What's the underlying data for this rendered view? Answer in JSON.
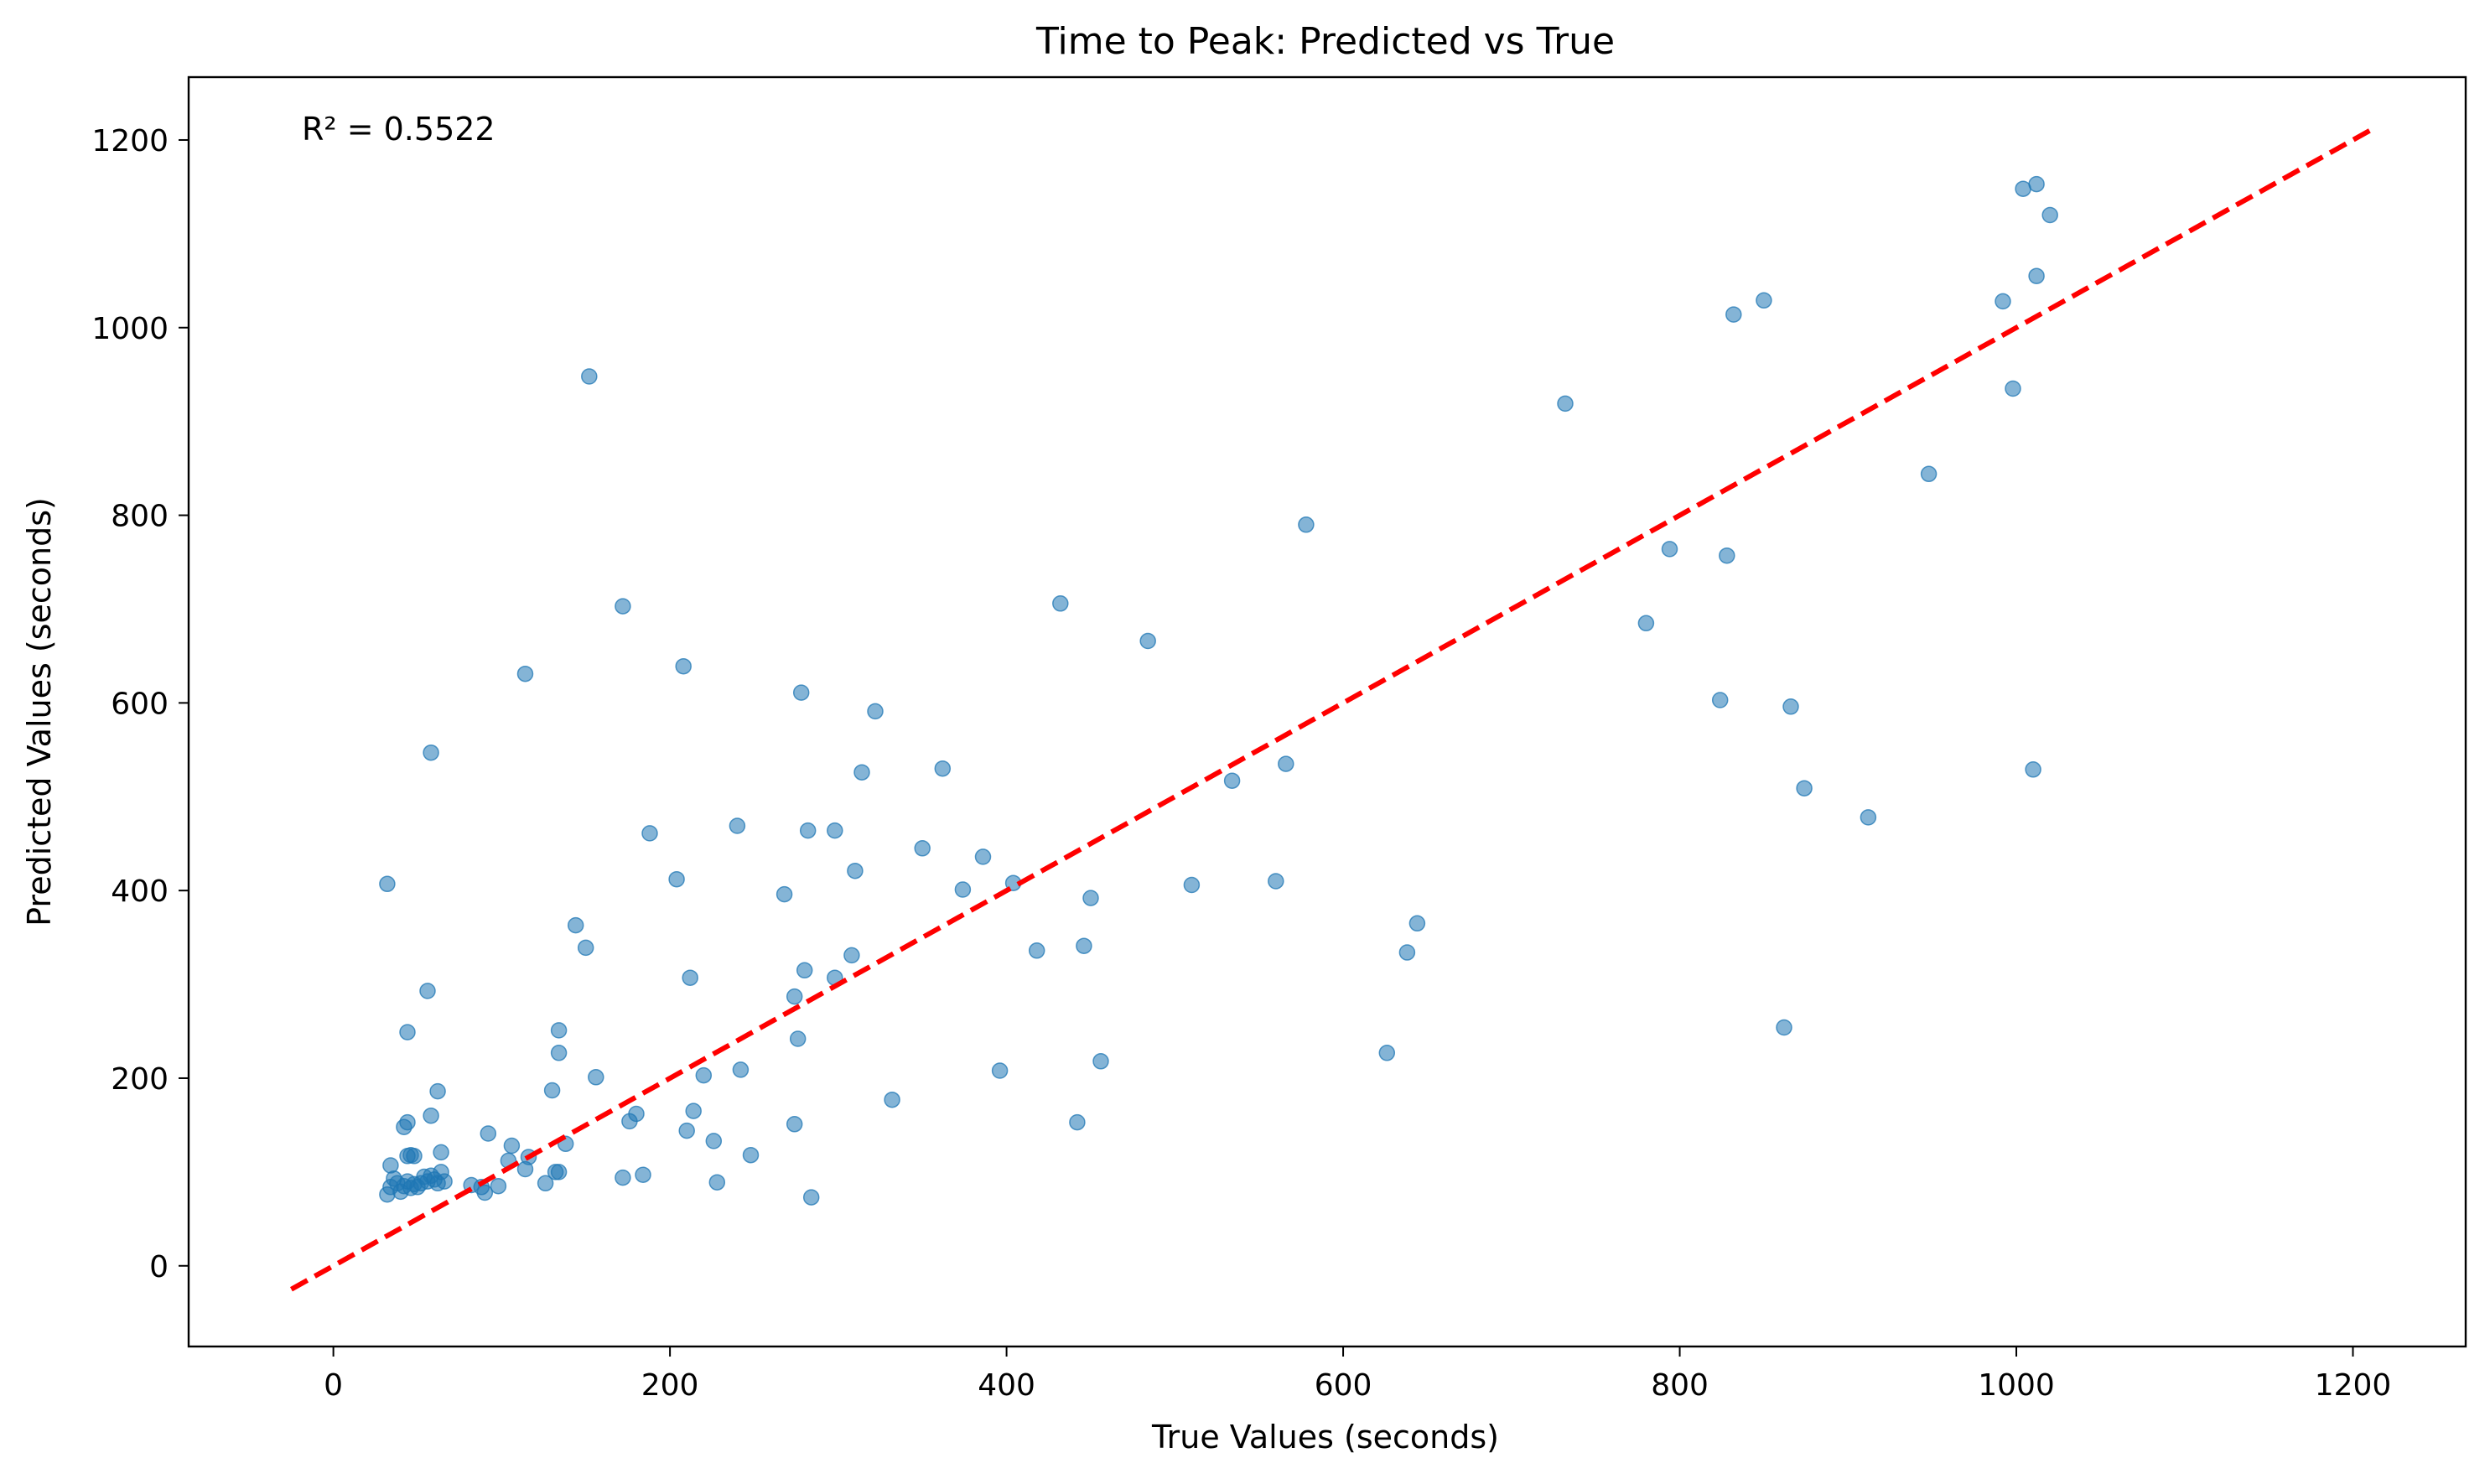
{
  "chart_data": {
    "type": "scatter",
    "title": "Time to Peak: Predicted vs True",
    "xlabel": "True Values (seconds)",
    "ylabel": "Predicted Values (seconds)",
    "xlim": [
      -86,
      1267
    ],
    "ylim": [
      -86,
      1267
    ],
    "xticks": [
      0,
      200,
      400,
      600,
      800,
      1000,
      1200
    ],
    "yticks": [
      0,
      200,
      400,
      600,
      800,
      1000,
      1200
    ],
    "grid": false,
    "legend": "none",
    "annotation": "R² = 0.5522",
    "point_color": "#1f77b4",
    "line_color": "#ff0000",
    "reference_line": {
      "x": [
        -25,
        1210
      ],
      "y": [
        -25,
        1210
      ],
      "style": "dashed"
    },
    "series": [
      {
        "points": [
          [
            32,
            76
          ],
          [
            34,
            84
          ],
          [
            36,
            93
          ],
          [
            38,
            88
          ],
          [
            40,
            79
          ],
          [
            42,
            85
          ],
          [
            44,
            90
          ],
          [
            46,
            83
          ],
          [
            48,
            87
          ],
          [
            50,
            84
          ],
          [
            52,
            88
          ],
          [
            54,
            95
          ],
          [
            56,
            90
          ],
          [
            58,
            96
          ],
          [
            60,
            92
          ],
          [
            62,
            88
          ],
          [
            64,
            100
          ],
          [
            66,
            90
          ],
          [
            34,
            107
          ],
          [
            44,
            117
          ],
          [
            46,
            118
          ],
          [
            48,
            117
          ],
          [
            58,
            160
          ],
          [
            62,
            186
          ],
          [
            56,
            293
          ],
          [
            44,
            249
          ],
          [
            42,
            148
          ],
          [
            44,
            153
          ],
          [
            58,
            547
          ],
          [
            32,
            407
          ],
          [
            64,
            121
          ],
          [
            82,
            86
          ],
          [
            88,
            84
          ],
          [
            90,
            78
          ],
          [
            92,
            141
          ],
          [
            98,
            85
          ],
          [
            104,
            112
          ],
          [
            106,
            128
          ],
          [
            114,
            103
          ],
          [
            116,
            116
          ],
          [
            126,
            88
          ],
          [
            130,
            187
          ],
          [
            132,
            100
          ],
          [
            134,
            100
          ],
          [
            134,
            251
          ],
          [
            134,
            227
          ],
          [
            138,
            130
          ],
          [
            144,
            363
          ],
          [
            150,
            339
          ],
          [
            152,
            948
          ],
          [
            114,
            631
          ],
          [
            156,
            201
          ],
          [
            172,
            703
          ],
          [
            172,
            94
          ],
          [
            176,
            154
          ],
          [
            180,
            162
          ],
          [
            184,
            97
          ],
          [
            188,
            461
          ],
          [
            204,
            412
          ],
          [
            208,
            639
          ],
          [
            210,
            144
          ],
          [
            212,
            307
          ],
          [
            214,
            165
          ],
          [
            220,
            203
          ],
          [
            226,
            133
          ],
          [
            228,
            89
          ],
          [
            240,
            469
          ],
          [
            242,
            209
          ],
          [
            248,
            118
          ],
          [
            268,
            396
          ],
          [
            274,
            287
          ],
          [
            276,
            242
          ],
          [
            278,
            611
          ],
          [
            280,
            315
          ],
          [
            282,
            464
          ],
          [
            284,
            73
          ],
          [
            274,
            151
          ],
          [
            298,
            464
          ],
          [
            298,
            307
          ],
          [
            308,
            331
          ],
          [
            310,
            421
          ],
          [
            314,
            526
          ],
          [
            322,
            591
          ],
          [
            332,
            177
          ],
          [
            350,
            445
          ],
          [
            362,
            530
          ],
          [
            374,
            401
          ],
          [
            386,
            436
          ],
          [
            396,
            208
          ],
          [
            404,
            408
          ],
          [
            418,
            336
          ],
          [
            432,
            706
          ],
          [
            442,
            153
          ],
          [
            446,
            341
          ],
          [
            450,
            392
          ],
          [
            456,
            218
          ],
          [
            484,
            666
          ],
          [
            510,
            406
          ],
          [
            534,
            517
          ],
          [
            560,
            410
          ],
          [
            566,
            535
          ],
          [
            578,
            790
          ],
          [
            626,
            227
          ],
          [
            638,
            334
          ],
          [
            644,
            365
          ],
          [
            732,
            919
          ],
          [
            780,
            685
          ],
          [
            794,
            764
          ],
          [
            824,
            603
          ],
          [
            828,
            757
          ],
          [
            832,
            1014
          ],
          [
            850,
            1029
          ],
          [
            862,
            254
          ],
          [
            866,
            596
          ],
          [
            874,
            509
          ],
          [
            912,
            478
          ],
          [
            948,
            844
          ],
          [
            992,
            1028
          ],
          [
            998,
            935
          ],
          [
            1004,
            1148
          ],
          [
            1010,
            529
          ],
          [
            1012,
            1055
          ],
          [
            1012,
            1153
          ],
          [
            1020,
            1120
          ]
        ]
      }
    ]
  }
}
